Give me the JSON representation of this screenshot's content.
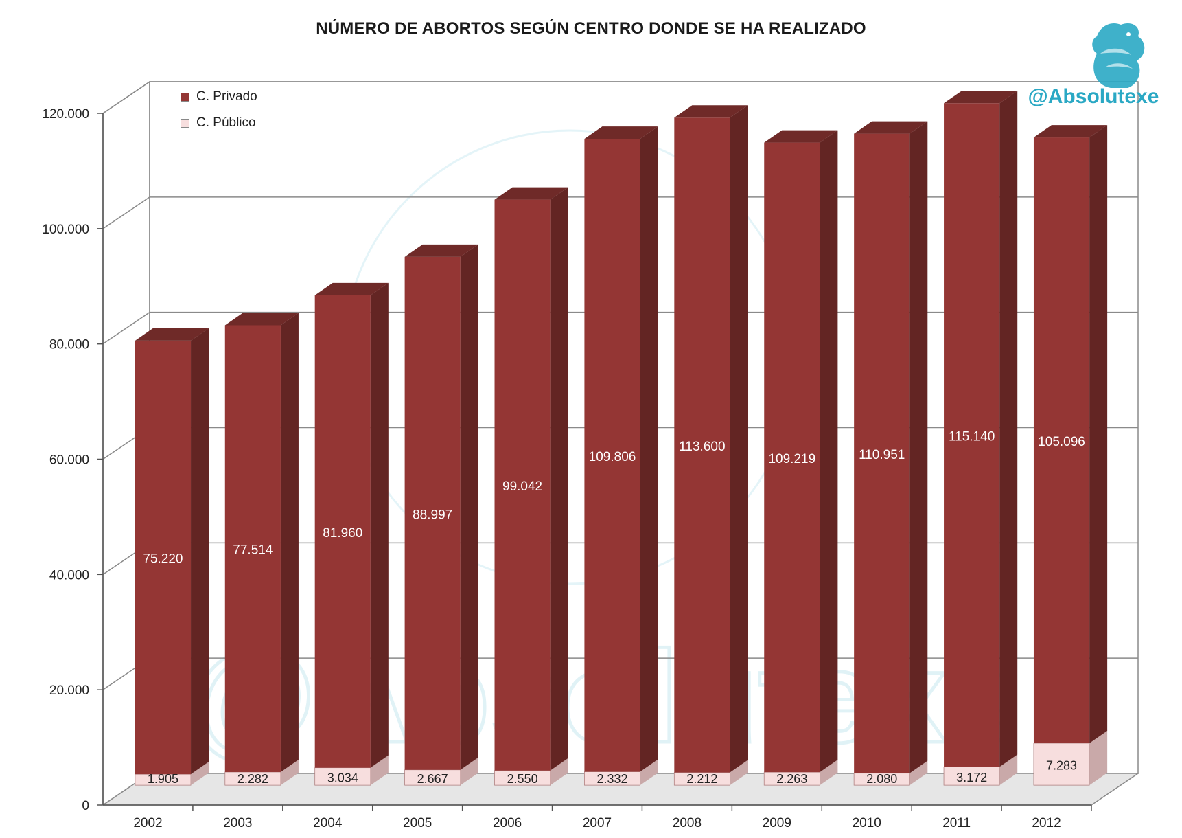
{
  "header": {
    "title": "NÚMERO DE ABORTOS SEGÚN CENTRO DONDE SE HA REALIZADO",
    "brand_handle": "@Absolutexe"
  },
  "colors": {
    "privado": "#943634",
    "privado_dark": "#632523",
    "publico": "#f7dede",
    "publico_dark": "#c9a9a9",
    "watermark": "#d9eff5",
    "brand": "#2aa8c4"
  },
  "chart_data": {
    "type": "bar",
    "stacked": true,
    "style": "3d",
    "title": "NÚMERO DE ABORTOS SEGÚN CENTRO DONDE SE HA REALIZADO",
    "categories": [
      "2002",
      "2003",
      "2004",
      "2005",
      "2006",
      "2007",
      "2008",
      "2009",
      "2010",
      "2011",
      "2012"
    ],
    "series": [
      {
        "name": "C. Público",
        "values": [
          1905,
          2282,
          3034,
          2667,
          2550,
          2332,
          2212,
          2263,
          2080,
          3172,
          7283
        ],
        "labels": [
          "1.905",
          "2.282",
          "3.034",
          "2.667",
          "2.550",
          "2.332",
          "2.212",
          "2.263",
          "2.080",
          "3.172",
          "7.283"
        ]
      },
      {
        "name": "C. Privado",
        "values": [
          75220,
          77514,
          81960,
          88997,
          99042,
          109806,
          113600,
          109219,
          110951,
          115140,
          105096
        ],
        "labels": [
          "75.220",
          "77.514",
          "81.960",
          "88.997",
          "99.042",
          "109.806",
          "113.600",
          "109.219",
          "110.951",
          "115.140",
          "105.096"
        ]
      }
    ],
    "ylim": [
      0,
      120000
    ],
    "yticks": [
      0,
      20000,
      40000,
      60000,
      80000,
      100000,
      120000
    ],
    "ytick_labels": [
      "0",
      "20.000",
      "40.000",
      "60.000",
      "80.000",
      "100.000",
      "120.000"
    ],
    "grid": true,
    "legend_position": "top-left",
    "legend": [
      "C. Privado",
      "C. Público"
    ],
    "watermark_text": "@Absolutexe"
  }
}
